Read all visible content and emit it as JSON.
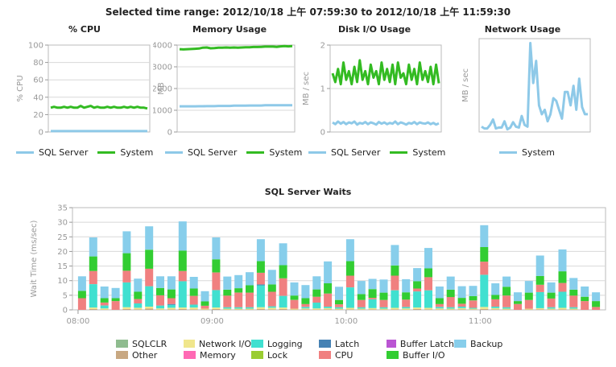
{
  "header": {
    "range_title": "Selected time range: 2012/10/18 上午 07:59:30 to 2012/10/18 上午 11:59:30"
  },
  "colors": {
    "sql_server": "#8ec9e8",
    "system": "#33bb22",
    "gridline": "#d8d8d8",
    "axis": "#999999"
  },
  "chart_data": [
    {
      "id": "cpu",
      "type": "line",
      "title": "% CPU",
      "ylabel": "% CPU",
      "ylim": [
        0,
        100
      ],
      "yticks": [
        "0",
        "20",
        "40",
        "60",
        "80",
        "100"
      ],
      "series": [
        {
          "name": "SQL Server",
          "color": "#8ec9e8",
          "values": [
            1,
            1,
            1,
            1,
            1,
            1,
            1,
            1,
            1,
            1,
            1,
            1,
            1,
            1,
            1,
            1,
            1,
            1,
            1,
            1,
            1,
            1,
            1,
            1,
            1,
            1,
            1,
            1,
            1,
            1
          ]
        },
        {
          "name": "System",
          "color": "#33bb22",
          "values": [
            28,
            29,
            28,
            28,
            29,
            28,
            29,
            28,
            28,
            30,
            28,
            29,
            30,
            28,
            29,
            28,
            28,
            29,
            28,
            29,
            28,
            28,
            29,
            28,
            29,
            28,
            29,
            28,
            28,
            27
          ]
        }
      ]
    },
    {
      "id": "memory",
      "type": "line",
      "title": "Memory Usage",
      "ylabel": "MB",
      "ylim": [
        0,
        4000
      ],
      "yticks": [
        "0",
        "1000",
        "2000",
        "3000",
        "4000"
      ],
      "series": [
        {
          "name": "SQL Server",
          "color": "#8ec9e8",
          "values": [
            1180,
            1180,
            1180,
            1180,
            1180,
            1185,
            1185,
            1190,
            1190,
            1190,
            1200,
            1200,
            1200,
            1200,
            1210,
            1210,
            1210,
            1210,
            1220,
            1220,
            1220,
            1220,
            1230,
            1230,
            1230,
            1230,
            1230,
            1230,
            1230,
            1230
          ]
        },
        {
          "name": "System",
          "color": "#33bb22",
          "values": [
            3810,
            3800,
            3810,
            3820,
            3830,
            3840,
            3880,
            3890,
            3850,
            3860,
            3880,
            3880,
            3890,
            3880,
            3890,
            3880,
            3890,
            3900,
            3900,
            3910,
            3910,
            3920,
            3930,
            3930,
            3930,
            3920,
            3940,
            3950,
            3940,
            3950
          ]
        }
      ]
    },
    {
      "id": "disk",
      "type": "line",
      "title": "Disk I/O Usage",
      "ylabel": "MB / sec",
      "ylim": [
        0,
        2
      ],
      "yticks": [
        "0",
        "1",
        "2"
      ],
      "series": [
        {
          "name": "SQL Server",
          "color": "#8ec9e8",
          "values": [
            0.22,
            0.18,
            0.24,
            0.19,
            0.23,
            0.18,
            0.22,
            0.2,
            0.24,
            0.17,
            0.21,
            0.19,
            0.23,
            0.18,
            0.22,
            0.2,
            0.17,
            0.23,
            0.19,
            0.22,
            0.18,
            0.21,
            0.19,
            0.24,
            0.18,
            0.22,
            0.2,
            0.17,
            0.21,
            0.19,
            0.23,
            0.18,
            0.22,
            0.2,
            0.19,
            0.22,
            0.18,
            0.21,
            0.17,
            0.2
          ]
        },
        {
          "name": "System",
          "color": "#33bb22",
          "values": [
            1.35,
            1.15,
            1.45,
            1.1,
            1.6,
            1.2,
            1.4,
            1.1,
            1.5,
            1.15,
            1.65,
            1.2,
            1.4,
            1.1,
            1.55,
            1.25,
            1.4,
            1.1,
            1.6,
            1.2,
            1.45,
            1.15,
            1.55,
            1.1,
            1.6,
            1.25,
            1.35,
            1.1,
            1.55,
            1.2,
            1.45,
            1.1,
            1.6,
            1.2,
            1.4,
            1.15,
            1.5,
            1.1,
            1.55,
            1.12
          ]
        }
      ]
    },
    {
      "id": "network",
      "type": "line",
      "title": "Network Usage",
      "ylabel": "MB / sec",
      "series": [
        {
          "name": "System",
          "color": "#8ec9e8",
          "values": [
            0.06,
            0.04,
            0.04,
            0.08,
            0.14,
            0.04,
            0.05,
            0.05,
            0.12,
            0.03,
            0.05,
            0.11,
            0.06,
            0.05,
            0.18,
            0.08,
            0.06,
            1.0,
            0.55,
            0.8,
            0.3,
            0.2,
            0.25,
            0.12,
            0.2,
            0.38,
            0.35,
            0.25,
            0.15,
            0.45,
            0.45,
            0.3,
            0.52,
            0.25,
            0.6,
            0.28,
            0.2,
            0.2
          ]
        }
      ]
    },
    {
      "id": "waits",
      "type": "bar",
      "stacked": true,
      "title": "SQL Server Waits",
      "ylabel": "Wait Time (ms/sec)",
      "ylim": [
        0,
        35
      ],
      "yticks": [
        "0",
        "5",
        "10",
        "15",
        "20",
        "25",
        "30",
        "35"
      ],
      "xticks": [
        {
          "label": "08:00",
          "pos": 0
        },
        {
          "label": "09:00",
          "pos": 12
        },
        {
          "label": "10:00",
          "pos": 24
        },
        {
          "label": "11:00",
          "pos": 36
        }
      ],
      "categories": [
        "08:00",
        "08:05",
        "08:10",
        "08:15",
        "08:20",
        "08:25",
        "08:30",
        "08:35",
        "08:40",
        "08:45",
        "08:50",
        "08:55",
        "09:00",
        "09:05",
        "09:10",
        "09:15",
        "09:20",
        "09:25",
        "09:30",
        "09:35",
        "09:40",
        "09:45",
        "09:50",
        "09:55",
        "10:00",
        "10:05",
        "10:10",
        "10:15",
        "10:20",
        "10:25",
        "10:30",
        "10:35",
        "10:40",
        "10:45",
        "10:50",
        "10:55",
        "11:00",
        "11:05",
        "11:10",
        "11:15",
        "11:20",
        "11:25",
        "11:30",
        "11:35",
        "11:40",
        "11:45",
        "11:50"
      ],
      "series": [
        {
          "name": "SQLCLR",
          "color": "#8fbc8f",
          "values": [
            0,
            0,
            0,
            0,
            0,
            0,
            0,
            0,
            0,
            0,
            0,
            0,
            0,
            0,
            0,
            0,
            0,
            0,
            0,
            0,
            0,
            0,
            0,
            0,
            0,
            0,
            0,
            0,
            0,
            0,
            0,
            0,
            0,
            0,
            0,
            0,
            0,
            0,
            0,
            0,
            0,
            0,
            0,
            0,
            0,
            0,
            0
          ]
        },
        {
          "name": "Other",
          "color": "#c8a882",
          "values": [
            0,
            0.3,
            0.1,
            0,
            0.3,
            0.2,
            0.4,
            0.1,
            0.2,
            0.3,
            0.2,
            0.1,
            0.3,
            0.1,
            0.1,
            0.1,
            0.3,
            0.2,
            0.3,
            0.1,
            0.2,
            0.1,
            0.2,
            0.1,
            0.2,
            0.1,
            0.2,
            0.1,
            0.2,
            0.1,
            0.3,
            0.2,
            0.1,
            0.1,
            0.2,
            0.1,
            0.3,
            0.2,
            0.1,
            0,
            0.1,
            0.2,
            0.1,
            0.2,
            0.1,
            0,
            0
          ]
        },
        {
          "name": "Network I/O",
          "color": "#f0e68c",
          "values": [
            0,
            0.5,
            0.4,
            0,
            0.6,
            0.5,
            0.7,
            0.4,
            0.5,
            0.5,
            0.6,
            0.3,
            0.5,
            0.3,
            0.3,
            0.3,
            0.6,
            0.5,
            0.5,
            0.3,
            0.3,
            0.4,
            0.4,
            0.3,
            0.5,
            0.3,
            0.4,
            0.3,
            0.5,
            0.4,
            0.5,
            0.5,
            0.4,
            0.3,
            0.4,
            0.3,
            0.7,
            0.4,
            0.3,
            0,
            0.3,
            0.4,
            0.3,
            0.5,
            0.3,
            0,
            0
          ]
        },
        {
          "name": "Memory",
          "color": "#ff69b4",
          "values": [
            0,
            0,
            0,
            0,
            0,
            0,
            0,
            0,
            0,
            0,
            0,
            0,
            0,
            0,
            0,
            0,
            0,
            0,
            0,
            0,
            0,
            0,
            0,
            0,
            0,
            0,
            0,
            0,
            0,
            0,
            0,
            0,
            0,
            0,
            0,
            0,
            0,
            0,
            0,
            0,
            0,
            0,
            0,
            0,
            0,
            0,
            0
          ]
        },
        {
          "name": "Logging",
          "color": "#40e0d0",
          "values": [
            0,
            8,
            1,
            0,
            8.5,
            1.5,
            7,
            1,
            1,
            9,
            1,
            0,
            6,
            0.5,
            0.5,
            0.5,
            7.5,
            0.5,
            4,
            0,
            0.5,
            2,
            0.5,
            0.5,
            7,
            0.5,
            3,
            0.5,
            6,
            0.5,
            5.5,
            6,
            0.5,
            0.5,
            0.5,
            0.3,
            11,
            0.5,
            0.5,
            0,
            0,
            5.5,
            0.5,
            5.5,
            0.5,
            0,
            0
          ]
        },
        {
          "name": "Lock",
          "color": "#9acd32",
          "values": [
            0,
            0,
            0,
            0,
            0,
            0,
            0,
            0,
            0,
            0,
            0,
            0,
            0,
            0,
            0,
            0,
            0,
            0,
            0,
            0,
            0,
            0,
            0,
            0,
            0,
            0,
            0,
            0,
            0,
            0,
            0,
            0,
            0,
            0,
            0,
            0,
            0,
            0,
            0,
            0,
            0,
            0,
            0,
            0,
            0,
            0,
            0
          ]
        },
        {
          "name": "Latch",
          "color": "#4682b4",
          "values": [
            0,
            0,
            0,
            0,
            0,
            0,
            0,
            0,
            0.3,
            0,
            0,
            0,
            0,
            0,
            0,
            0,
            0.3,
            0,
            0,
            0,
            0,
            0,
            0,
            0,
            0,
            0,
            0,
            0,
            0,
            0,
            0,
            0,
            0,
            0,
            0,
            0,
            0,
            0,
            0,
            0,
            0,
            0,
            0,
            0,
            0,
            0,
            0
          ]
        },
        {
          "name": "CPU",
          "color": "#f08080",
          "values": [
            4,
            4.5,
            1,
            3,
            4,
            1.5,
            6,
            3.5,
            2,
            3.5,
            3,
            1,
            6,
            4,
            5,
            5,
            4,
            5,
            6,
            3,
            1,
            2,
            4.5,
            1,
            4,
            2.5,
            0.5,
            2.5,
            5,
            2.5,
            1,
            4.5,
            1,
            3.5,
            1,
            2.5,
            4.5,
            2.5,
            4,
            2,
            3,
            2.5,
            3,
            3,
            4,
            3,
            1
          ]
        },
        {
          "name": "Buffer Latch",
          "color": "#ba55d3",
          "values": [
            0,
            0,
            0,
            0,
            0,
            0,
            0,
            0,
            0,
            0,
            0,
            0,
            0,
            0,
            0,
            0,
            0,
            0,
            0,
            0,
            0,
            0,
            0,
            0,
            0,
            0,
            0,
            0,
            0,
            0,
            0,
            0,
            0,
            0,
            0,
            0,
            0,
            0,
            0,
            0,
            0,
            0,
            0,
            0,
            0,
            0,
            0
          ]
        },
        {
          "name": "Buffer I/O",
          "color": "#32cd32",
          "values": [
            2.5,
            5,
            1.5,
            1,
            6,
            2.5,
            6.5,
            2.5,
            3,
            7,
            2.5,
            1.5,
            4.5,
            2,
            1.5,
            2.5,
            4,
            2.5,
            4.5,
            1.5,
            2,
            2.5,
            3.5,
            1.5,
            5,
            2,
            3,
            2.5,
            3.5,
            2.5,
            2.5,
            3,
            2,
            2.5,
            2,
            1.5,
            5,
            1.5,
            3,
            1,
            2.5,
            3,
            2,
            4,
            2,
            1.5,
            2
          ]
        },
        {
          "name": "Backup",
          "color": "#87ceeb",
          "values": [
            5,
            6.5,
            4,
            3.5,
            7.5,
            4.5,
            8,
            4,
            4.5,
            10,
            4,
            3.5,
            7.5,
            4.5,
            4.5,
            4.5,
            7.5,
            5,
            7.5,
            4.5,
            4.5,
            4.5,
            7.5,
            4.5,
            7.5,
            4.5,
            3.5,
            4.5,
            7,
            4.5,
            4.5,
            7,
            4,
            4.5,
            4,
            3.5,
            7.5,
            4,
            3.5,
            3,
            4,
            7,
            3.5,
            7.5,
            4,
            3.5,
            3
          ]
        }
      ]
    }
  ],
  "mini_legends": {
    "cpu": [
      "SQL Server",
      "System"
    ],
    "memory": [
      "SQL Server",
      "System"
    ],
    "disk": [
      "SQL Server",
      "System"
    ],
    "network": [
      "System"
    ]
  }
}
